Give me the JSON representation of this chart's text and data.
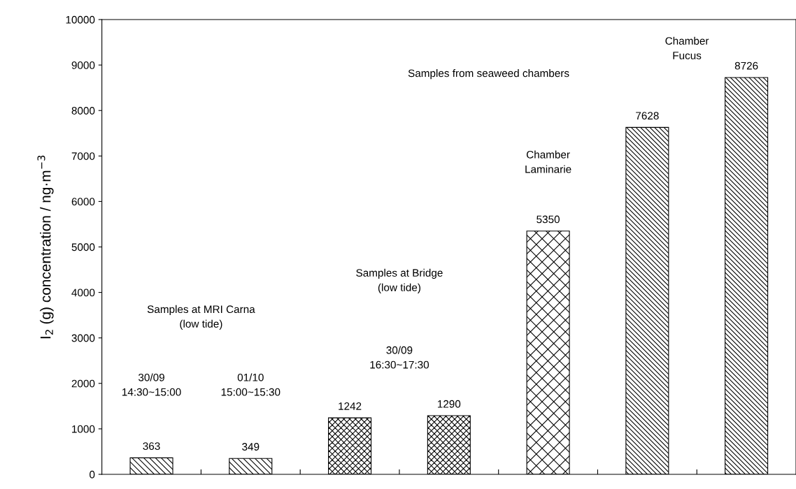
{
  "chart_data": {
    "type": "bar",
    "ylabel": "I$_{2}$ (g) concentration / ng·m$^{−3}$",
    "categories": [
      null,
      null,
      null,
      null,
      null,
      null,
      null
    ],
    "values": [
      363,
      349,
      1242,
      1290,
      5350,
      7628,
      8726
    ],
    "colors": [
      "#000000",
      "#000000",
      "#000000",
      "#000000",
      "#000000",
      "#000000",
      "#000000"
    ],
    "ylim": [
      0,
      10000
    ],
    "yticks": [
      0,
      1000,
      2000,
      3000,
      4000,
      5000,
      6000,
      7000,
      8000,
      9000,
      10000
    ],
    "grid": false,
    "data_labels": true,
    "annotations": [
      "Samples at MRI Carna\n(low tide)",
      "30/09\n14:30~15:00",
      "01/10\n15:00~15:30",
      "Samples at Bridge\n(low tide)",
      "30/09\n16:30~17:30",
      "Samples from seaweed chambers",
      "Chamber\nLaminarie",
      "Chamber\nFucus"
    ]
  }
}
